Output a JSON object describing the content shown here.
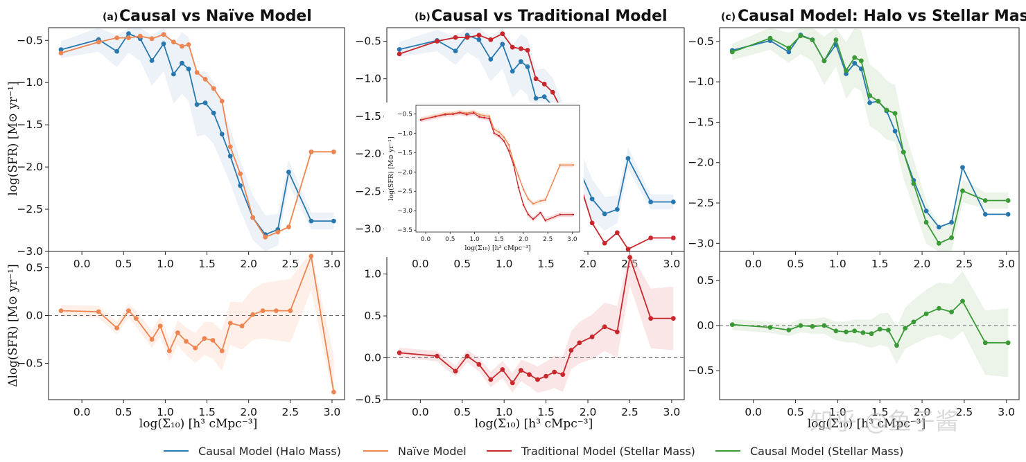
{
  "colors": {
    "halo": "#2878b0",
    "naive": "#ee8550",
    "traditional": "#c8282c",
    "stellar": "#3a9a36",
    "halo_band": "#dce8f2",
    "naive_band": "#fde4d6",
    "trad_band": "#f6d2d2",
    "stellar_band": "#dcebd9"
  },
  "watermark": "知乎 @鱼子酱",
  "legend": {
    "items": [
      {
        "label": "Causal Model (Halo Mass)",
        "color": "#2878b0"
      },
      {
        "label": "Naïve Model",
        "color": "#ee8550"
      },
      {
        "label": "Traditional Model (Stellar Mass)",
        "color": "#c8282c"
      },
      {
        "label": "Causal Model (Stellar Mass)",
        "color": "#3a9a36"
      }
    ]
  },
  "chart_data": [
    {
      "id": "a",
      "type": "line",
      "panel_tag": "(a)",
      "title": "Causal vs Naïve Model",
      "xlabel": "log(Σ₁₀) [h³ cMpc⁻³]",
      "xlim": [
        -0.4,
        3.15
      ],
      "xticks": [
        "0.0",
        "0.5",
        "1.0",
        "1.5",
        "2.0",
        "2.5",
        "3.0"
      ],
      "top": {
        "ylabel": "log(SFR) [M⊙ yr⁻¹]",
        "ylim": [
          -3.0,
          -0.35
        ],
        "yticks": [
          "-0.5",
          "-1.0",
          "-1.5",
          "-2.0",
          "-2.5",
          "-3.0"
        ],
        "x": [
          -0.25,
          0.2,
          0.42,
          0.56,
          0.7,
          0.84,
          0.98,
          1.1,
          1.2,
          1.28,
          1.38,
          1.48,
          1.58,
          1.68,
          1.78,
          1.9,
          2.05,
          2.2,
          2.35,
          2.48,
          2.75,
          3.02
        ],
        "series": [
          {
            "name": "Causal Model (Halo Mass)",
            "color": "#2878b0",
            "values": [
              -0.61,
              -0.49,
              -0.63,
              -0.42,
              -0.48,
              -0.74,
              -0.54,
              -0.9,
              -0.77,
              -0.84,
              -1.26,
              -1.24,
              -1.36,
              -1.61,
              -1.87,
              -2.22,
              -2.6,
              -2.8,
              -2.74,
              -2.06,
              -2.64,
              -2.64
            ]
          },
          {
            "name": "Naïve Model",
            "color": "#ee8550",
            "values": [
              -0.65,
              -0.52,
              -0.47,
              -0.47,
              -0.45,
              -0.48,
              -0.43,
              -0.52,
              -0.57,
              -0.55,
              -0.88,
              -0.96,
              -1.07,
              -1.22,
              -1.76,
              -2.08,
              -2.6,
              -2.83,
              -2.77,
              -2.71,
              -1.82,
              -1.82
            ]
          }
        ],
        "band_series": "Causal Model (Halo Mass)"
      },
      "bottom": {
        "ylabel": "Δlog(SFR) [M⊙ yr⁻¹]",
        "ylim": [
          -0.88,
          0.67
        ],
        "yticks": [
          "0.5",
          "0.0",
          "-0.5"
        ],
        "x": [
          -0.25,
          0.2,
          0.42,
          0.56,
          0.65,
          0.84,
          0.94,
          1.05,
          1.15,
          1.25,
          1.36,
          1.47,
          1.57,
          1.68,
          1.78,
          1.92,
          2.05,
          2.17,
          2.33,
          2.5,
          2.75,
          3.02
        ],
        "series": [
          {
            "name": "Naïve Model",
            "color": "#ee8550",
            "values": [
              0.05,
              0.04,
              -0.13,
              0.05,
              -0.03,
              -0.25,
              -0.11,
              -0.37,
              -0.18,
              -0.27,
              -0.34,
              -0.24,
              -0.26,
              -0.37,
              -0.08,
              -0.11,
              0.01,
              0.05,
              0.05,
              0.05,
              0.62,
              -0.8
            ]
          }
        ]
      }
    },
    {
      "id": "b",
      "type": "line",
      "panel_tag": "(b)",
      "title": "Causal vs Traditional Model",
      "xlabel": "log(Σ₁₀) [h³ cMpc⁻³]",
      "xlim": [
        -0.4,
        3.15
      ],
      "xticks": [
        "0.0",
        "0.5",
        "1.0",
        "1.5",
        "2.0",
        "2.5",
        "3.0"
      ],
      "top": {
        "ylabel": "",
        "ylim": [
          -3.3,
          -0.32
        ],
        "yticks": [
          "-0.5",
          "-1.0",
          "-1.5",
          "-2.0",
          "-2.5",
          "-3.0"
        ],
        "x": [
          -0.25,
          0.2,
          0.42,
          0.56,
          0.7,
          0.84,
          0.98,
          1.1,
          1.2,
          1.28,
          1.38,
          1.48,
          1.58,
          1.68,
          1.78,
          1.9,
          2.05,
          2.2,
          2.35,
          2.48,
          2.75,
          3.02
        ],
        "series": [
          {
            "name": "Causal Model (Halo Mass)",
            "color": "#2878b0",
            "values": [
              -0.61,
              -0.49,
              -0.63,
              -0.42,
              -0.48,
              -0.74,
              -0.54,
              -0.9,
              -0.77,
              -0.84,
              -1.26,
              -1.24,
              -1.36,
              -1.61,
              -1.87,
              -2.22,
              -2.6,
              -2.8,
              -2.74,
              -2.06,
              -2.64,
              -2.64
            ]
          },
          {
            "name": "Traditional Model (Stellar Mass)",
            "color": "#c8282c",
            "values": [
              -0.67,
              -0.5,
              -0.45,
              -0.45,
              -0.42,
              -0.48,
              -0.4,
              -0.58,
              -0.6,
              -0.62,
              -1.0,
              -1.07,
              -1.18,
              -1.4,
              -1.78,
              -2.38,
              -2.92,
              -3.19,
              -3.05,
              -3.27,
              -3.12,
              -3.12
            ]
          }
        ],
        "band_series": "Causal Model (Halo Mass)"
      },
      "bottom": {
        "ylabel": "",
        "ylim": [
          -0.5,
          1.27
        ],
        "yticks": [
          "1.0",
          "0.5",
          "0.0",
          "-0.5"
        ],
        "x": [
          -0.25,
          0.2,
          0.42,
          0.56,
          0.7,
          0.84,
          0.98,
          1.1,
          1.2,
          1.3,
          1.4,
          1.5,
          1.6,
          1.7,
          1.8,
          1.9,
          2.05,
          2.2,
          2.35,
          2.5,
          2.75,
          3.02
        ],
        "series": [
          {
            "name": "Traditional Model (Stellar Mass)",
            "color": "#c8282c",
            "values": [
              0.06,
              0.02,
              -0.16,
              0.02,
              -0.08,
              -0.26,
              -0.14,
              -0.3,
              -0.15,
              -0.2,
              -0.26,
              -0.22,
              -0.17,
              -0.2,
              0.09,
              0.18,
              0.25,
              0.37,
              0.31,
              1.2,
              0.47,
              0.47
            ]
          }
        ]
      },
      "inset": {
        "xlim": [
          -0.2,
          3.15
        ],
        "ylim": [
          -3.55,
          -0.28
        ],
        "xticks": [
          "0.0",
          "0.5",
          "1.0",
          "1.5",
          "2.0",
          "2.5",
          "3.0"
        ],
        "yticks": [
          "-0.5",
          "-1.0",
          "-1.5",
          "-2.0",
          "-2.5",
          "-3.0",
          "-3.5"
        ],
        "xlabel": "log(Σ₁₀) [h³ cMpc⁻³]",
        "ylabel": "log(SFR) [M⊙ yr⁻¹]",
        "x": [
          -0.1,
          0.2,
          0.4,
          0.56,
          0.7,
          0.84,
          0.98,
          1.1,
          1.2,
          1.3,
          1.4,
          1.5,
          1.6,
          1.7,
          1.8,
          1.9,
          2.0,
          2.1,
          2.2,
          2.35,
          2.45,
          2.75,
          3.02
        ],
        "series": [
          {
            "name": "Naïve Model",
            "color": "#ee8550",
            "values": [
              -0.65,
              -0.56,
              -0.5,
              -0.49,
              -0.46,
              -0.48,
              -0.45,
              -0.52,
              -0.55,
              -0.56,
              -0.9,
              -0.97,
              -1.1,
              -1.3,
              -1.75,
              -2.1,
              -2.45,
              -2.7,
              -2.82,
              -2.75,
              -2.72,
              -1.82,
              -1.82
            ]
          },
          {
            "name": "Traditional Model (Stellar Mass)",
            "color": "#c8282c",
            "values": [
              -0.66,
              -0.57,
              -0.52,
              -0.51,
              -0.47,
              -0.52,
              -0.48,
              -0.58,
              -0.6,
              -0.62,
              -1.0,
              -1.07,
              -1.2,
              -1.45,
              -1.82,
              -2.4,
              -2.85,
              -3.1,
              -3.22,
              -3.05,
              -3.25,
              -3.1,
              -3.1
            ]
          }
        ]
      }
    },
    {
      "id": "c",
      "type": "line",
      "panel_tag": "(c)",
      "title": "Causal Model: Halo vs Stellar Mass",
      "xlabel": "log(Σ₁₀) [h³ cMpc⁻³]",
      "xlim": [
        -0.4,
        3.15
      ],
      "xticks": [
        "0.0",
        "0.5",
        "1.0",
        "1.5",
        "2.0",
        "2.5",
        "3.0"
      ],
      "top": {
        "ylabel": "",
        "ylim": [
          -3.1,
          -0.33
        ],
        "yticks": [
          "-0.5",
          "-1.0",
          "-1.5",
          "-2.0",
          "-2.5",
          "-3.0"
        ],
        "x": [
          -0.25,
          0.2,
          0.42,
          0.56,
          0.7,
          0.84,
          0.98,
          1.1,
          1.2,
          1.28,
          1.38,
          1.48,
          1.58,
          1.68,
          1.78,
          1.9,
          2.05,
          2.2,
          2.35,
          2.48,
          2.75,
          3.02
        ],
        "series": [
          {
            "name": "Causal Model (Halo Mass)",
            "color": "#2878b0",
            "values": [
              -0.61,
              -0.49,
              -0.63,
              -0.42,
              -0.48,
              -0.74,
              -0.54,
              -0.9,
              -0.77,
              -0.84,
              -1.26,
              -1.24,
              -1.36,
              -1.61,
              -1.87,
              -2.22,
              -2.6,
              -2.8,
              -2.74,
              -2.06,
              -2.64,
              -2.64
            ]
          },
          {
            "name": "Causal Model (Stellar Mass)",
            "color": "#3a9a36",
            "values": [
              -0.63,
              -0.46,
              -0.58,
              -0.43,
              -0.48,
              -0.74,
              -0.48,
              -0.86,
              -0.7,
              -0.74,
              -1.17,
              -1.24,
              -1.35,
              -1.39,
              -1.87,
              -2.26,
              -2.74,
              -3.0,
              -2.93,
              -2.35,
              -2.47,
              -2.47
            ]
          }
        ],
        "band_series": "Causal Model (Stellar Mass)"
      },
      "bottom": {
        "ylabel": "",
        "ylim": [
          -0.82,
          0.82
        ],
        "yticks": [
          "0.5",
          "0.0",
          "-0.5"
        ],
        "x": [
          -0.25,
          0.2,
          0.42,
          0.56,
          0.7,
          0.84,
          0.98,
          1.1,
          1.2,
          1.3,
          1.4,
          1.5,
          1.6,
          1.7,
          1.8,
          1.9,
          2.05,
          2.2,
          2.35,
          2.48,
          2.75,
          3.02
        ],
        "series": [
          {
            "name": "Causal Model (Stellar Mass)",
            "color": "#3a9a36",
            "values": [
              0.01,
              -0.02,
              -0.05,
              0.0,
              -0.01,
              0.0,
              -0.06,
              -0.07,
              -0.06,
              -0.08,
              -0.09,
              -0.04,
              -0.05,
              -0.22,
              -0.03,
              0.04,
              0.13,
              0.19,
              0.15,
              0.27,
              -0.19,
              -0.19
            ]
          }
        ]
      }
    }
  ]
}
